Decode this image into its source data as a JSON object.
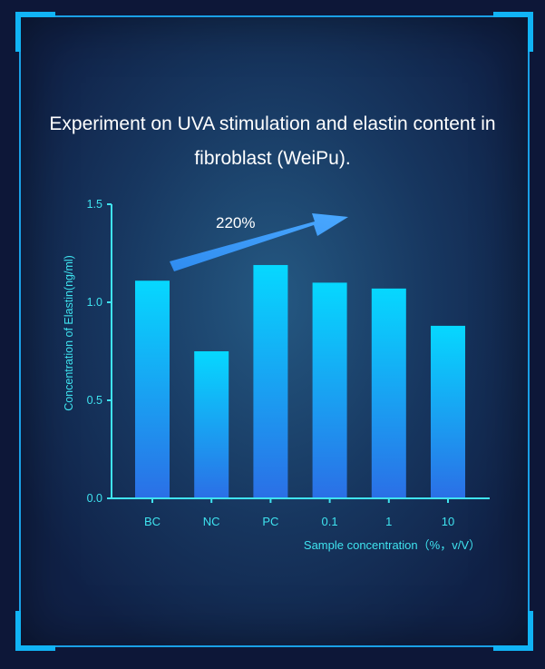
{
  "chart_data": {
    "type": "bar",
    "title": "Experiment on UVA stimulation and elastin content in fibroblast (WeiPu).",
    "xlabel": "Sample concentration（%，v/V）",
    "ylabel": "Concentration of Elastin(ng/ml)",
    "categories": [
      "BC",
      "NC",
      "PC",
      "0.1",
      "1",
      "10"
    ],
    "values": [
      1.11,
      0.75,
      1.19,
      1.1,
      1.07,
      0.88
    ],
    "ylim": [
      0,
      1.5
    ],
    "yticks": [
      "0.0",
      "0.5",
      "1.0",
      "1.5"
    ],
    "annotation": "220%",
    "grid": false,
    "colors": {
      "bar_top": "#06d8ff",
      "bar_bottom": "#2b6fe6",
      "axis": "#3fe3ef",
      "arrow": "#3b9cff"
    }
  }
}
